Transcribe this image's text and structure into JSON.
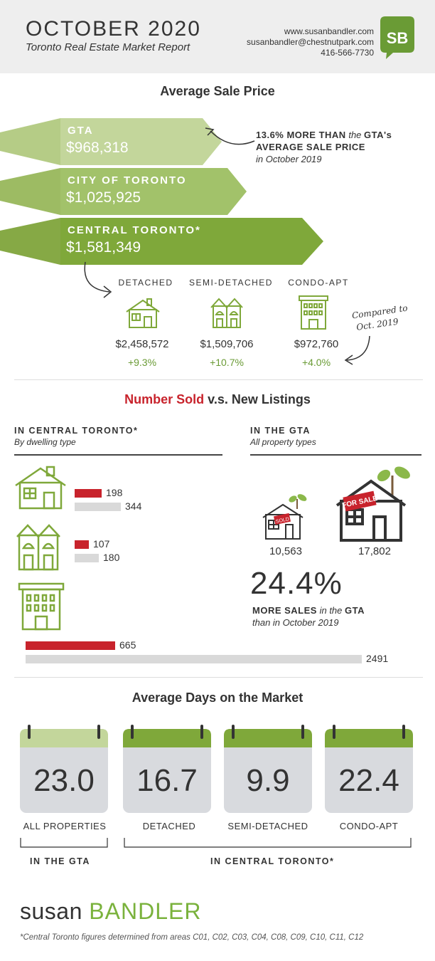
{
  "header": {
    "title": "OCTOBER 2020",
    "subtitle": "Toronto Real Estate Market Report",
    "website": "www.susanbandler.com",
    "email": "susanbandler@chestnutpark.com",
    "phone": "416-566-7730",
    "logo_text": "SB"
  },
  "avg_price": {
    "title": "Average Sale Price",
    "banners": [
      {
        "label": "GTA",
        "value": "$968,318"
      },
      {
        "label": "CITY OF TORONTO",
        "value": "$1,025,925"
      },
      {
        "label": "CENTRAL TORONTO*",
        "value": "$1,581,349"
      }
    ],
    "note_line1_bold": "13.6% MORE THAN",
    "note_line1_it": "the",
    "note_line1_bold2": "GTA's",
    "note_line2": "AVERAGE SALE PRICE",
    "note_line3": "in October 2019",
    "compared_line1": "Compared to",
    "compared_line2": "Oct. 2019",
    "types": [
      {
        "label": "DETACHED",
        "price": "$2,458,572",
        "change": "+9.3%",
        "icon": "detached-house-icon"
      },
      {
        "label": "SEMI-DETACHED",
        "price": "$1,509,706",
        "change": "+10.7%",
        "icon": "semi-detached-icon"
      },
      {
        "label": "CONDO-APT",
        "price": "$972,760",
        "change": "+4.0%",
        "icon": "condo-building-icon"
      }
    ]
  },
  "sold_listings": {
    "title_red": "Number Sold",
    "title_rest": "v.s. New Listings",
    "central_head": "IN CENTRAL TORONTO*",
    "central_sub": "By dwelling type",
    "gta_head": "IN THE GTA",
    "gta_sub": "All property types",
    "central": [
      {
        "type": "detached",
        "sold": 198,
        "listings": 344
      },
      {
        "type": "semi-detached",
        "sold": 107,
        "listings": 180
      },
      {
        "type": "condo-apt",
        "sold": 665,
        "listings": 2491
      }
    ],
    "gta_sold": "10,563",
    "gta_listings": "17,802",
    "sold_sign": "SOLD",
    "forsale_sign": "FOR SALE",
    "gta_pct": "24.4%",
    "gta_note_bold": "MORE SALES",
    "gta_note_it": "in the",
    "gta_note_bold2": "GTA",
    "gta_note_line2": "than in October 2019"
  },
  "days_market": {
    "title": "Average Days on the Market",
    "items": [
      {
        "value": "23.0",
        "label": "ALL PROPERTIES"
      },
      {
        "value": "16.7",
        "label": "DETACHED"
      },
      {
        "value": "9.9",
        "label": "SEMI-DETACHED"
      },
      {
        "value": "22.4",
        "label": "CONDO-APT"
      }
    ],
    "group_gta": "IN THE GTA",
    "group_central": "IN CENTRAL TORONTO*"
  },
  "footer": {
    "brand_first": "susan",
    "brand_last": "BANDLER",
    "footnote": "*Central Toronto figures determined from areas C01, C02, C03, C04, C08, C09, C10, C11, C12"
  },
  "colors": {
    "green_light": "#c3d69b",
    "green_mid": "#a2c26a",
    "green_dark": "#7fa83a",
    "accent_red": "#c8232c",
    "grey_bar": "#d9d9d9"
  }
}
